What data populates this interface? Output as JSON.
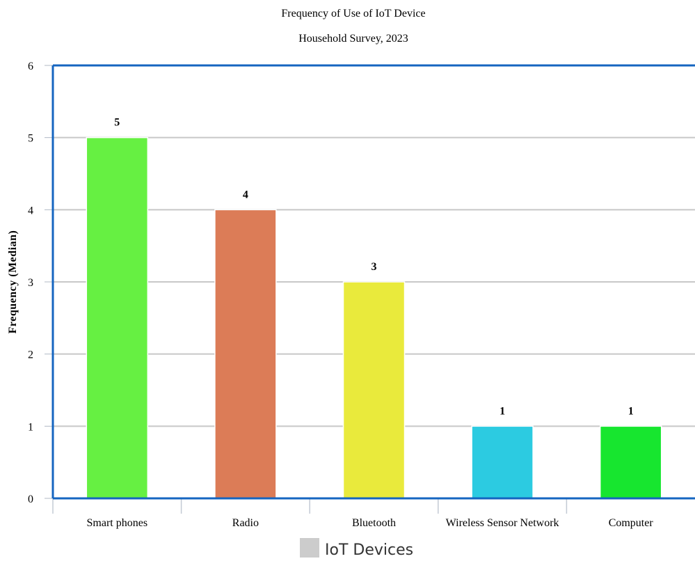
{
  "chart_data": {
    "type": "bar",
    "title": "Frequency of Use of IoT Device",
    "subtitle": "Household Survey, 2023",
    "xlabel": "",
    "ylabel": "Frequency (Median)",
    "categories": [
      "Smart phones",
      "Radio",
      "Bluetooth",
      "Wireless Sensor Network",
      "Computer"
    ],
    "values": [
      5,
      4,
      3,
      1,
      1
    ],
    "bar_colors": [
      "#66f042",
      "#dc7c57",
      "#e9ea3c",
      "#2ccbe1",
      "#17e62f"
    ],
    "ylim": [
      0,
      6
    ],
    "yticks": [
      0,
      1,
      2,
      3,
      4,
      5,
      6
    ],
    "grid": true,
    "data_labels": true,
    "legend": {
      "label": "IoT Devices",
      "swatch_color": "#cccccc",
      "position": "bottom"
    },
    "axis_color": "#1565c0",
    "grid_color": "#c8c8c8"
  }
}
